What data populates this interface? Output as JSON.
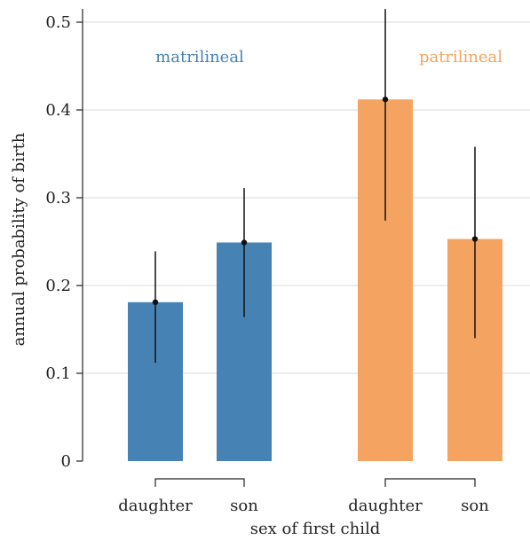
{
  "chart_data": {
    "type": "bar",
    "ylabel": "annual probability of birth",
    "xlabel": "sex of first child",
    "ylim": [
      0,
      0.5
    ],
    "yticks": [
      0,
      0.1,
      0.2,
      0.3,
      0.4,
      0.5
    ],
    "ytick_labels": [
      "0",
      "0.1",
      "0.2",
      "0.3",
      "0.4",
      "0.5"
    ],
    "grid": "horizontal",
    "groups": [
      {
        "name": "matrilineal",
        "color": "#4682b4",
        "bars": [
          {
            "category": "daughter",
            "value": 0.181,
            "lower": 0.112,
            "upper": 0.239
          },
          {
            "category": "son",
            "value": 0.249,
            "lower": 0.164,
            "upper": 0.311
          }
        ]
      },
      {
        "name": "patrilineal",
        "color": "#f4a460",
        "bars": [
          {
            "category": "daughter",
            "value": 0.412,
            "lower": 0.274,
            "upper": 0.515
          },
          {
            "category": "son",
            "value": 0.253,
            "lower": 0.14,
            "upper": 0.358
          }
        ]
      }
    ]
  }
}
